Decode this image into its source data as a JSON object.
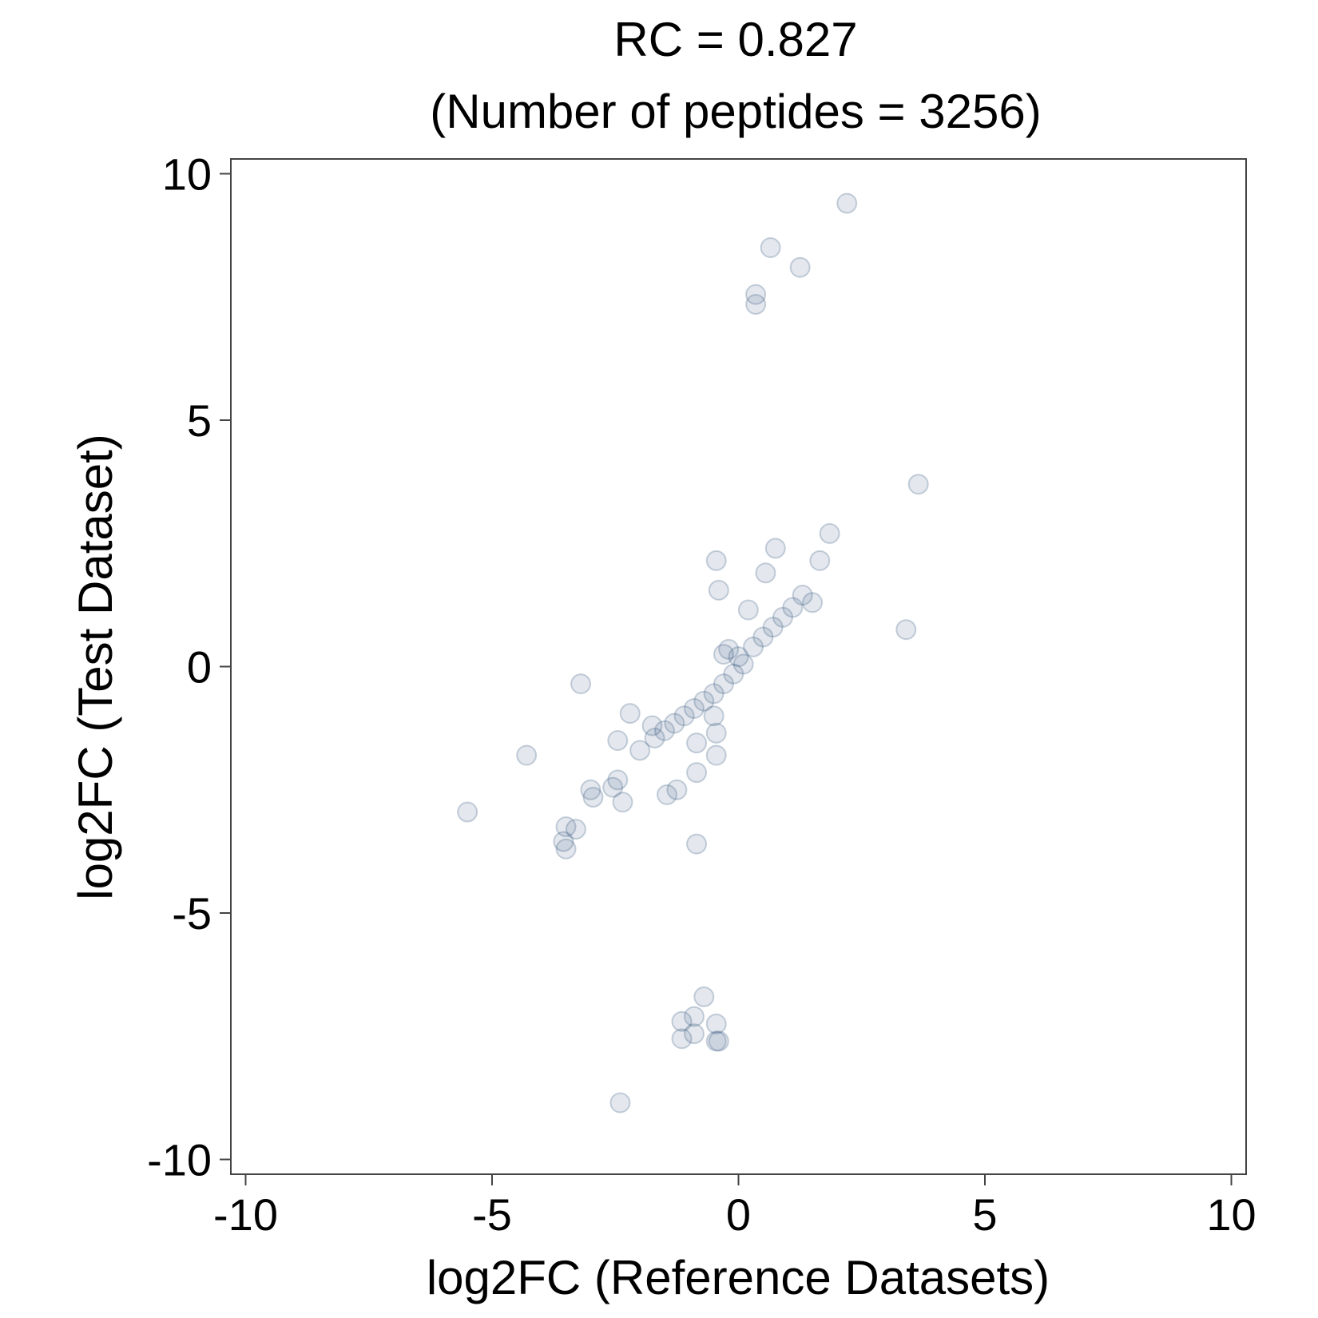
{
  "chart_data": {
    "type": "scatter",
    "title": "RC = 0.827",
    "subtitle": "(Number of peptides = 3256)",
    "xlabel": "log2FC (Reference Datasets)",
    "ylabel": "log2FC (Test Dataset)",
    "xlim": [
      -10.3,
      10.3
    ],
    "ylim": [
      -10.3,
      10.3
    ],
    "xticks": [
      -10,
      -5,
      0,
      5,
      10
    ],
    "yticks": [
      -10,
      -5,
      0,
      5,
      10
    ],
    "xtick_labels": [
      "-10",
      "-5",
      "0",
      "5",
      "10"
    ],
    "ytick_labels": [
      "-10",
      "-5",
      "0",
      "5",
      "10"
    ],
    "grid": false,
    "point_color": "#2b4f78",
    "point_opacity": 0.13,
    "points": {
      "x": [
        2.2,
        0.65,
        1.25,
        0.35,
        0.35,
        3.65,
        1.85,
        0.75,
        -0.45,
        1.65,
        1.5,
        -0.4,
        0.55,
        0.2,
        3.4,
        -0.3,
        -0.2,
        -3.2,
        -2.2,
        -4.3,
        -2.45,
        -2.0,
        -1.75,
        -2.45,
        -2.55,
        -2.35,
        -3.0,
        -2.95,
        -1.45,
        -1.25,
        -0.85,
        -0.85,
        -0.45,
        -0.45,
        -0.5,
        -5.5,
        -3.5,
        -3.55,
        -3.3,
        -3.5,
        -0.85,
        -0.7,
        -1.15,
        -0.9,
        -0.45,
        -0.9,
        -0.4,
        -1.15,
        -0.45,
        -2.4,
        0.1,
        -0.1,
        0.0,
        0.3,
        0.5,
        0.7,
        0.9,
        1.1,
        1.3,
        -0.3,
        -0.5,
        -0.7,
        -0.9,
        -1.1,
        -1.3,
        -1.5,
        -1.7
      ],
      "y": [
        9.4,
        8.5,
        8.1,
        7.55,
        7.35,
        3.7,
        2.7,
        2.4,
        2.15,
        2.15,
        1.3,
        1.55,
        1.9,
        1.15,
        0.75,
        0.25,
        0.35,
        -0.35,
        -0.95,
        -1.8,
        -1.5,
        -1.7,
        -1.2,
        -2.3,
        -2.45,
        -2.75,
        -2.5,
        -2.65,
        -2.6,
        -2.5,
        -2.15,
        -1.55,
        -1.8,
        -1.35,
        -1.0,
        -2.95,
        -3.25,
        -3.55,
        -3.3,
        -3.7,
        -3.6,
        -6.7,
        -7.2,
        -7.1,
        -7.25,
        -7.45,
        -7.6,
        -7.55,
        -7.6,
        -8.85,
        0.05,
        -0.15,
        0.2,
        0.4,
        0.6,
        0.8,
        1.0,
        1.2,
        1.45,
        -0.35,
        -0.55,
        -0.7,
        -0.85,
        -1.0,
        -1.15,
        -1.3,
        -1.45
      ]
    }
  }
}
